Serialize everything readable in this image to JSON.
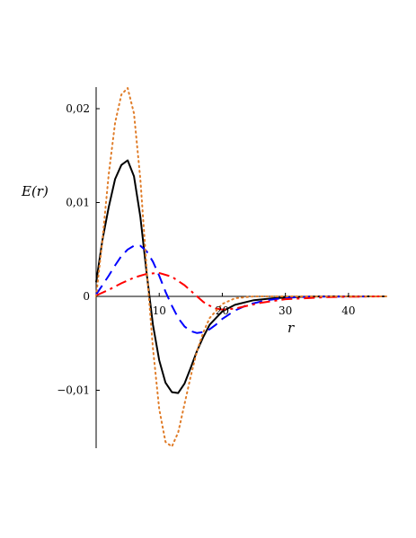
{
  "chart_data": {
    "type": "line",
    "title": "",
    "xlabel": "r",
    "ylabel": "E(r)",
    "xlim": [
      0,
      46
    ],
    "ylim": [
      -0.016,
      0.022
    ],
    "x_ticks": [
      {
        "value": 10,
        "label": "10"
      },
      {
        "value": 20,
        "label": "20"
      },
      {
        "value": 30,
        "label": "30"
      },
      {
        "value": 40,
        "label": "40"
      }
    ],
    "y_ticks": [
      {
        "value": 0.02,
        "label": "0,02"
      },
      {
        "value": 0.01,
        "label": "0,01"
      },
      {
        "value": 0,
        "label": "0"
      },
      {
        "value": -0.01,
        "label": "−0,01"
      }
    ],
    "grid": false,
    "legend": "none",
    "series": [
      {
        "color": "#000000",
        "dash": "solid",
        "points": [
          [
            0,
            0.0015
          ],
          [
            1,
            0.006
          ],
          [
            2,
            0.0095
          ],
          [
            3,
            0.0125
          ],
          [
            4,
            0.014
          ],
          [
            5,
            0.0145
          ],
          [
            6,
            0.0128
          ],
          [
            7,
            0.0085
          ],
          [
            8,
            0.0025
          ],
          [
            9,
            -0.003
          ],
          [
            10,
            -0.0068
          ],
          [
            11,
            -0.0092
          ],
          [
            12,
            -0.0102
          ],
          [
            13,
            -0.0103
          ],
          [
            14,
            -0.0093
          ],
          [
            15,
            -0.0076
          ],
          [
            16,
            -0.0058
          ],
          [
            17,
            -0.0043
          ],
          [
            18,
            -0.003
          ],
          [
            20,
            -0.0016
          ],
          [
            22,
            -0.0009
          ],
          [
            25,
            -0.0004
          ],
          [
            28,
            -0.0002
          ],
          [
            32,
            -5e-05
          ],
          [
            36,
            0
          ],
          [
            46,
            0
          ]
        ]
      },
      {
        "color": "#0000ff",
        "dash": "dashed",
        "points": [
          [
            0,
            0.0002
          ],
          [
            1,
            0.0012
          ],
          [
            2,
            0.0022
          ],
          [
            3,
            0.0033
          ],
          [
            4,
            0.0043
          ],
          [
            5,
            0.005
          ],
          [
            6,
            0.0054
          ],
          [
            7,
            0.0054
          ],
          [
            8,
            0.0048
          ],
          [
            9,
            0.0037
          ],
          [
            10,
            0.0022
          ],
          [
            11,
            0.0005
          ],
          [
            12,
            -0.001
          ],
          [
            13,
            -0.0023
          ],
          [
            14,
            -0.0032
          ],
          [
            15,
            -0.0037
          ],
          [
            16,
            -0.0039
          ],
          [
            17,
            -0.0038
          ],
          [
            18,
            -0.0035
          ],
          [
            19,
            -0.003
          ],
          [
            20,
            -0.0024
          ],
          [
            22,
            -0.0015
          ],
          [
            24,
            -0.0009
          ],
          [
            27,
            -0.0004
          ],
          [
            30,
            -0.00015
          ],
          [
            34,
            -3e-05
          ],
          [
            46,
            0
          ]
        ]
      },
      {
        "color": "#ff0000",
        "dash": "dashdot",
        "points": [
          [
            0,
            0.0001
          ],
          [
            2,
            0.0007
          ],
          [
            4,
            0.0014
          ],
          [
            6,
            0.002
          ],
          [
            8,
            0.0024
          ],
          [
            10,
            0.0025
          ],
          [
            12,
            0.0021
          ],
          [
            14,
            0.0012
          ],
          [
            15,
            0.0006
          ],
          [
            16,
            0
          ],
          [
            17,
            -0.0006
          ],
          [
            18,
            -0.001
          ],
          [
            19,
            -0.0013
          ],
          [
            20,
            -0.0014
          ],
          [
            22,
            -0.0013
          ],
          [
            24,
            -0.001
          ],
          [
            26,
            -0.0007
          ],
          [
            28,
            -0.0005
          ],
          [
            30,
            -0.0003
          ],
          [
            33,
            -0.0002
          ],
          [
            36,
            -0.0001
          ],
          [
            40,
            -4e-05
          ],
          [
            46,
            0
          ]
        ]
      },
      {
        "color": "#e07d2a",
        "dash": "dotted",
        "points": [
          [
            0,
            0.0
          ],
          [
            1,
            0.006
          ],
          [
            2,
            0.013
          ],
          [
            3,
            0.0185
          ],
          [
            4,
            0.0215
          ],
          [
            5,
            0.0222
          ],
          [
            6,
            0.0195
          ],
          [
            7,
            0.0125
          ],
          [
            8,
            0.003
          ],
          [
            9,
            -0.0055
          ],
          [
            10,
            -0.012
          ],
          [
            11,
            -0.0155
          ],
          [
            12,
            -0.016
          ],
          [
            13,
            -0.0145
          ],
          [
            14,
            -0.0115
          ],
          [
            15,
            -0.0085
          ],
          [
            16,
            -0.0058
          ],
          [
            17,
            -0.0038
          ],
          [
            18,
            -0.0023
          ],
          [
            20,
            -0.0008
          ],
          [
            22,
            -0.0002
          ],
          [
            25,
            0
          ],
          [
            46,
            0
          ]
        ]
      }
    ]
  }
}
